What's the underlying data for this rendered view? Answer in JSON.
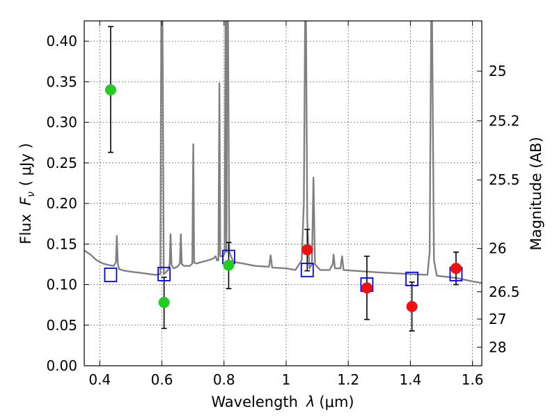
{
  "chart_data": {
    "type": "scatter",
    "xlabel": "Wavelength",
    "xlabel_symbol": "λ",
    "xlabel_unit": "(μm)",
    "ylabel": "Flux",
    "ylabel_symbol": "F",
    "ylabel_symbol_sub": "ν",
    "ylabel_unit": "( μJy )",
    "y2label": "Magnitude (AB)",
    "xlim": [
      0.35,
      1.63
    ],
    "ylim": [
      0.0,
      0.425
    ],
    "grid": true,
    "x_ticks": [
      {
        "value": 0.4,
        "label": "0.4"
      },
      {
        "value": 0.6,
        "label": "0.6"
      },
      {
        "value": 0.8,
        "label": "0.8"
      },
      {
        "value": 1.0,
        "label": "1"
      },
      {
        "value": 1.2,
        "label": "1.2"
      },
      {
        "value": 1.4,
        "label": "1.4"
      },
      {
        "value": 1.6,
        "label": "1.6"
      }
    ],
    "y_ticks": [
      {
        "value": 0.0,
        "label": "0.00"
      },
      {
        "value": 0.05,
        "label": "0.05"
      },
      {
        "value": 0.1,
        "label": "0.10"
      },
      {
        "value": 0.15,
        "label": "0.15"
      },
      {
        "value": 0.2,
        "label": "0.20"
      },
      {
        "value": 0.25,
        "label": "0.25"
      },
      {
        "value": 0.3,
        "label": "0.30"
      },
      {
        "value": 0.35,
        "label": "0.35"
      },
      {
        "value": 0.4,
        "label": "0.40"
      }
    ],
    "y2_ticks": [
      {
        "value": 25,
        "label": "25"
      },
      {
        "value": 25.2,
        "label": "25.2"
      },
      {
        "value": 25.5,
        "label": "25.5"
      },
      {
        "value": 26,
        "label": "26"
      },
      {
        "value": 26.5,
        "label": "26.5"
      },
      {
        "value": 27,
        "label": "27"
      },
      {
        "value": 28,
        "label": "28"
      }
    ],
    "series": [
      {
        "kind": "line",
        "color": "#808080",
        "points": [
          [
            0.35,
            0.142
          ],
          [
            0.37,
            0.137
          ],
          [
            0.39,
            0.13
          ],
          [
            0.41,
            0.126
          ],
          [
            0.43,
            0.124
          ],
          [
            0.445,
            0.123
          ],
          [
            0.452,
            0.128
          ],
          [
            0.455,
            0.16
          ],
          [
            0.458,
            0.126
          ],
          [
            0.462,
            0.119
          ],
          [
            0.48,
            0.117
          ],
          [
            0.5,
            0.116
          ],
          [
            0.52,
            0.115
          ],
          [
            0.54,
            0.114
          ],
          [
            0.56,
            0.113
          ],
          [
            0.58,
            0.112
          ],
          [
            0.595,
            0.113
          ],
          [
            0.598,
            0.425
          ],
          [
            0.602,
            0.425
          ],
          [
            0.606,
            0.113
          ],
          [
            0.612,
            0.115
          ],
          [
            0.62,
            0.118
          ],
          [
            0.625,
            0.125
          ],
          [
            0.628,
            0.162
          ],
          [
            0.631,
            0.124
          ],
          [
            0.638,
            0.12
          ],
          [
            0.65,
            0.122
          ],
          [
            0.658,
            0.126
          ],
          [
            0.661,
            0.162
          ],
          [
            0.664,
            0.125
          ],
          [
            0.672,
            0.123
          ],
          [
            0.69,
            0.123
          ],
          [
            0.698,
            0.126
          ],
          [
            0.701,
            0.273
          ],
          [
            0.704,
            0.127
          ],
          [
            0.712,
            0.126
          ],
          [
            0.73,
            0.128
          ],
          [
            0.75,
            0.13
          ],
          [
            0.765,
            0.132
          ],
          [
            0.773,
            0.135
          ],
          [
            0.777,
            0.13
          ],
          [
            0.782,
            0.13
          ],
          [
            0.785,
            0.348
          ],
          [
            0.788,
            0.135
          ],
          [
            0.795,
            0.135
          ],
          [
            0.802,
            0.138
          ],
          [
            0.805,
            0.425
          ],
          [
            0.808,
            0.14
          ],
          [
            0.81,
            0.425
          ],
          [
            0.813,
            0.425
          ],
          [
            0.817,
            0.14
          ],
          [
            0.83,
            0.128
          ],
          [
            0.86,
            0.126
          ],
          [
            0.9,
            0.123
          ],
          [
            0.945,
            0.122
          ],
          [
            0.95,
            0.136
          ],
          [
            0.955,
            0.121
          ],
          [
            1.0,
            0.12
          ],
          [
            1.03,
            0.118
          ],
          [
            1.05,
            0.13
          ],
          [
            1.057,
            0.2
          ],
          [
            1.061,
            0.425
          ],
          [
            1.064,
            0.425
          ],
          [
            1.068,
            0.18
          ],
          [
            1.075,
            0.12
          ],
          [
            1.083,
            0.125
          ],
          [
            1.088,
            0.232
          ],
          [
            1.093,
            0.125
          ],
          [
            1.11,
            0.118
          ],
          [
            1.14,
            0.118
          ],
          [
            1.15,
            0.125
          ],
          [
            1.153,
            0.137
          ],
          [
            1.157,
            0.12
          ],
          [
            1.175,
            0.12
          ],
          [
            1.18,
            0.135
          ],
          [
            1.185,
            0.118
          ],
          [
            1.22,
            0.117
          ],
          [
            1.3,
            0.115
          ],
          [
            1.4,
            0.113
          ],
          [
            1.455,
            0.112
          ],
          [
            1.462,
            0.14
          ],
          [
            1.467,
            0.425
          ],
          [
            1.47,
            0.425
          ],
          [
            1.476,
            0.13
          ],
          [
            1.485,
            0.111
          ],
          [
            1.55,
            0.108
          ],
          [
            1.6,
            0.104
          ],
          [
            1.63,
            0.102
          ]
        ]
      },
      {
        "kind": "errorbar",
        "color": "#000000",
        "points": [
          {
            "x": 0.435,
            "low": 0.263,
            "high": 0.418
          },
          {
            "x": 0.607,
            "low": 0.046,
            "high": 0.109
          },
          {
            "x": 0.815,
            "low": 0.095,
            "high": 0.152
          },
          {
            "x": 1.068,
            "low": 0.117,
            "high": 0.168
          },
          {
            "x": 1.26,
            "low": 0.057,
            "high": 0.135
          },
          {
            "x": 1.405,
            "low": 0.043,
            "high": 0.103
          },
          {
            "x": 1.547,
            "low": 0.1,
            "high": 0.14
          }
        ]
      },
      {
        "kind": "marker-square-open",
        "color": "#0000ff",
        "points": [
          [
            0.435,
            0.112
          ],
          [
            0.607,
            0.113
          ],
          [
            0.815,
            0.134
          ],
          [
            1.068,
            0.118
          ],
          [
            1.26,
            0.1
          ],
          [
            1.405,
            0.107
          ],
          [
            1.547,
            0.113
          ]
        ]
      },
      {
        "kind": "marker-circle",
        "color": "#22cc22",
        "points": [
          [
            0.435,
            0.34
          ],
          [
            0.607,
            0.078
          ],
          [
            0.815,
            0.124
          ]
        ]
      },
      {
        "kind": "marker-circle",
        "color": "#ee1111",
        "points": [
          [
            1.068,
            0.143
          ],
          [
            1.26,
            0.096
          ],
          [
            1.405,
            0.073
          ],
          [
            1.547,
            0.12
          ]
        ]
      }
    ]
  }
}
